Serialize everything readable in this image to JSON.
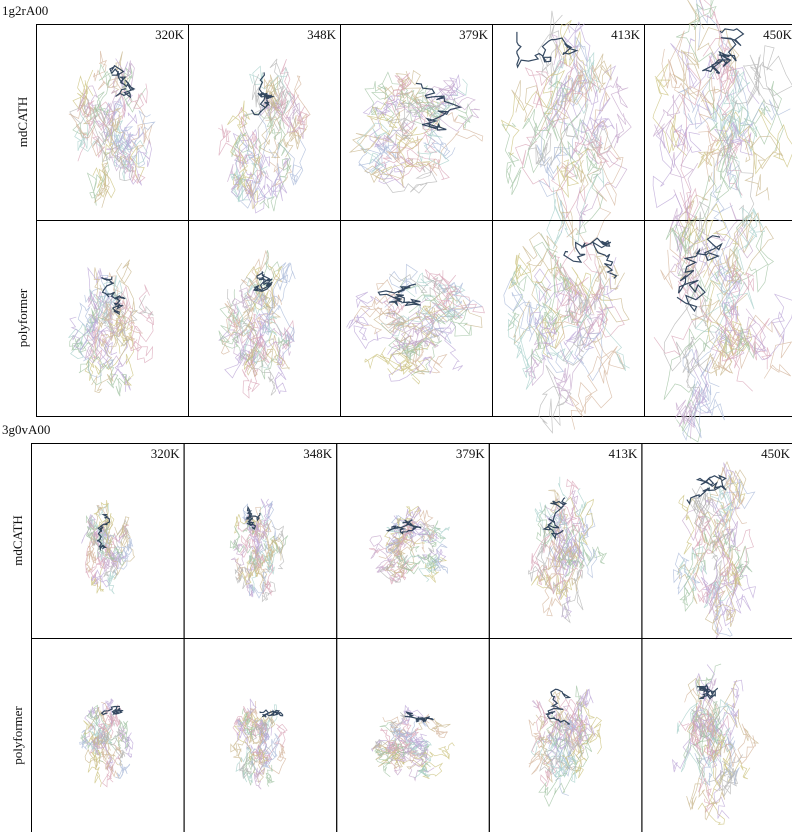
{
  "groups": [
    {
      "title": "1g2rA00",
      "columns": [
        "320K",
        "348K",
        "379K",
        "413K",
        "450K"
      ],
      "rows": [
        "mdCATH",
        "polyformer"
      ]
    },
    {
      "title": "3g0vA00",
      "columns": [
        "320K",
        "348K",
        "379K",
        "413K",
        "450K"
      ],
      "rows": [
        "mdCATH",
        "polyformer"
      ]
    }
  ]
}
